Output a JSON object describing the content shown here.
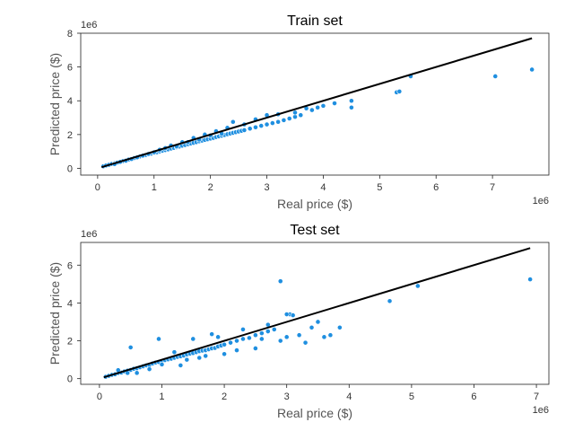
{
  "chart_data": [
    {
      "type": "scatter",
      "title": "Train set",
      "xlabel": "Real price ($)",
      "ylabel": "Predicted price ($)",
      "x_multiplier_label": "1e6",
      "y_multiplier_label": "1e6",
      "xlim": [
        -0.3,
        8.0
      ],
      "ylim": [
        -0.4,
        8.0
      ],
      "xticks": [
        0,
        1,
        2,
        3,
        4,
        5,
        6,
        7
      ],
      "yticks": [
        0,
        2,
        4,
        6,
        8
      ],
      "point_color": "#1f8fe0",
      "line_color": "#000000",
      "fit_line": {
        "x": [
          0.07,
          7.7
        ],
        "y": [
          0.07,
          7.7
        ]
      },
      "series": [
        {
          "name": "",
          "x": [
            0.1,
            0.15,
            0.2,
            0.25,
            0.3,
            0.35,
            0.4,
            0.45,
            0.5,
            0.55,
            0.6,
            0.65,
            0.7,
            0.75,
            0.8,
            0.85,
            0.9,
            0.95,
            1.0,
            1.05,
            1.1,
            1.15,
            1.2,
            1.25,
            1.3,
            1.35,
            1.4,
            1.45,
            1.5,
            1.55,
            1.6,
            1.65,
            1.7,
            1.75,
            1.8,
            1.85,
            1.9,
            1.95,
            2.0,
            2.05,
            2.1,
            2.15,
            2.2,
            2.25,
            2.3,
            2.35,
            2.4,
            2.45,
            2.5,
            2.55,
            2.6,
            2.7,
            2.8,
            2.9,
            3.0,
            3.1,
            3.2,
            3.3,
            3.4,
            3.5,
            3.6,
            3.8,
            4.0,
            4.2,
            4.5,
            4.5,
            5.3,
            5.35,
            5.55,
            7.05,
            7.7,
            0.3,
            0.5,
            0.7,
            0.9,
            1.1,
            1.3,
            1.5,
            1.7,
            1.9,
            2.1,
            2.3,
            2.4,
            2.6,
            2.8,
            3.0,
            3.2,
            3.5,
            3.7,
            3.9,
            2.2,
            2.0,
            1.8,
            1.6,
            1.4,
            1.2,
            1.0,
            0.8,
            0.6,
            0.4
          ],
          "y": [
            0.12,
            0.17,
            0.21,
            0.26,
            0.3,
            0.34,
            0.39,
            0.43,
            0.48,
            0.52,
            0.57,
            0.61,
            0.66,
            0.7,
            0.74,
            0.78,
            0.83,
            0.87,
            0.91,
            0.95,
            1.0,
            1.04,
            1.08,
            1.12,
            1.17,
            1.21,
            1.25,
            1.29,
            1.34,
            1.38,
            1.43,
            1.47,
            1.51,
            1.55,
            1.6,
            1.64,
            1.68,
            1.72,
            1.76,
            1.8,
            1.85,
            1.89,
            1.93,
            1.97,
            2.02,
            2.06,
            2.1,
            2.14,
            2.18,
            2.22,
            2.26,
            2.35,
            2.43,
            2.52,
            2.6,
            2.68,
            2.75,
            2.85,
            2.95,
            3.05,
            3.15,
            3.45,
            3.7,
            3.85,
            3.6,
            4.0,
            4.5,
            4.55,
            5.45,
            5.45,
            5.85,
            0.25,
            0.45,
            0.65,
            0.85,
            1.1,
            1.35,
            1.55,
            1.8,
            2.0,
            2.2,
            2.4,
            2.75,
            2.6,
            2.9,
            3.15,
            3.2,
            3.3,
            3.55,
            3.6,
            2.05,
            1.95,
            1.7,
            1.55,
            1.3,
            1.2,
            0.95,
            0.75,
            0.55,
            0.38
          ]
        }
      ]
    },
    {
      "type": "scatter",
      "title": "Test set",
      "xlabel": "Real price ($)",
      "ylabel": "Predicted price ($)",
      "x_multiplier_label": "1e6",
      "y_multiplier_label": "1e6",
      "xlim": [
        -0.3,
        7.2
      ],
      "ylim": [
        -0.3,
        7.2
      ],
      "xticks": [
        0,
        1,
        2,
        3,
        4,
        5,
        6,
        7
      ],
      "yticks": [
        0,
        2,
        4,
        6
      ],
      "point_color": "#1f8fe0",
      "line_color": "#000000",
      "fit_line": {
        "x": [
          0.07,
          6.9
        ],
        "y": [
          0.07,
          6.9
        ]
      },
      "series": [
        {
          "name": "",
          "x": [
            0.1,
            0.15,
            0.2,
            0.25,
            0.3,
            0.35,
            0.4,
            0.45,
            0.5,
            0.55,
            0.6,
            0.65,
            0.7,
            0.75,
            0.8,
            0.85,
            0.9,
            0.95,
            1.0,
            1.05,
            1.1,
            1.15,
            1.2,
            1.25,
            1.3,
            1.35,
            1.4,
            1.45,
            1.5,
            1.55,
            1.6,
            1.65,
            1.7,
            1.75,
            1.8,
            1.85,
            1.9,
            1.95,
            2.0,
            2.1,
            2.2,
            2.3,
            2.4,
            2.5,
            2.6,
            2.7,
            2.8,
            2.9,
            3.0,
            3.05,
            3.1,
            3.2,
            3.3,
            3.4,
            3.5,
            3.6,
            3.7,
            3.85,
            4.65,
            5.1,
            6.9,
            0.5,
            0.95,
            0.45,
            1.5,
            1.8,
            2.9,
            1.3,
            1.7,
            2.0,
            2.2,
            2.5,
            2.7,
            3.0,
            0.3,
            0.6,
            0.8,
            1.0,
            1.2,
            1.4,
            1.6,
            1.9,
            2.3,
            2.6
          ],
          "y": [
            0.1,
            0.15,
            0.2,
            0.23,
            0.3,
            0.32,
            0.38,
            0.42,
            0.46,
            0.52,
            0.55,
            0.6,
            0.65,
            0.7,
            0.72,
            0.8,
            0.85,
            0.88,
            0.92,
            0.98,
            1.02,
            1.05,
            1.1,
            1.15,
            1.18,
            1.22,
            1.28,
            1.32,
            1.35,
            1.4,
            1.45,
            1.48,
            1.5,
            1.55,
            1.6,
            1.62,
            1.7,
            1.75,
            1.8,
            1.9,
            2.0,
            2.1,
            2.15,
            2.3,
            2.4,
            2.5,
            2.6,
            2.0,
            2.2,
            3.4,
            3.35,
            2.3,
            1.9,
            2.7,
            3.0,
            2.2,
            2.3,
            2.7,
            4.1,
            4.9,
            5.25,
            1.65,
            2.1,
            0.3,
            2.1,
            2.35,
            5.15,
            0.7,
            1.2,
            1.3,
            1.5,
            1.6,
            2.85,
            3.4,
            0.45,
            0.3,
            0.5,
            0.75,
            1.4,
            1.0,
            1.1,
            2.2,
            2.6,
            2.1
          ]
        }
      ]
    }
  ]
}
